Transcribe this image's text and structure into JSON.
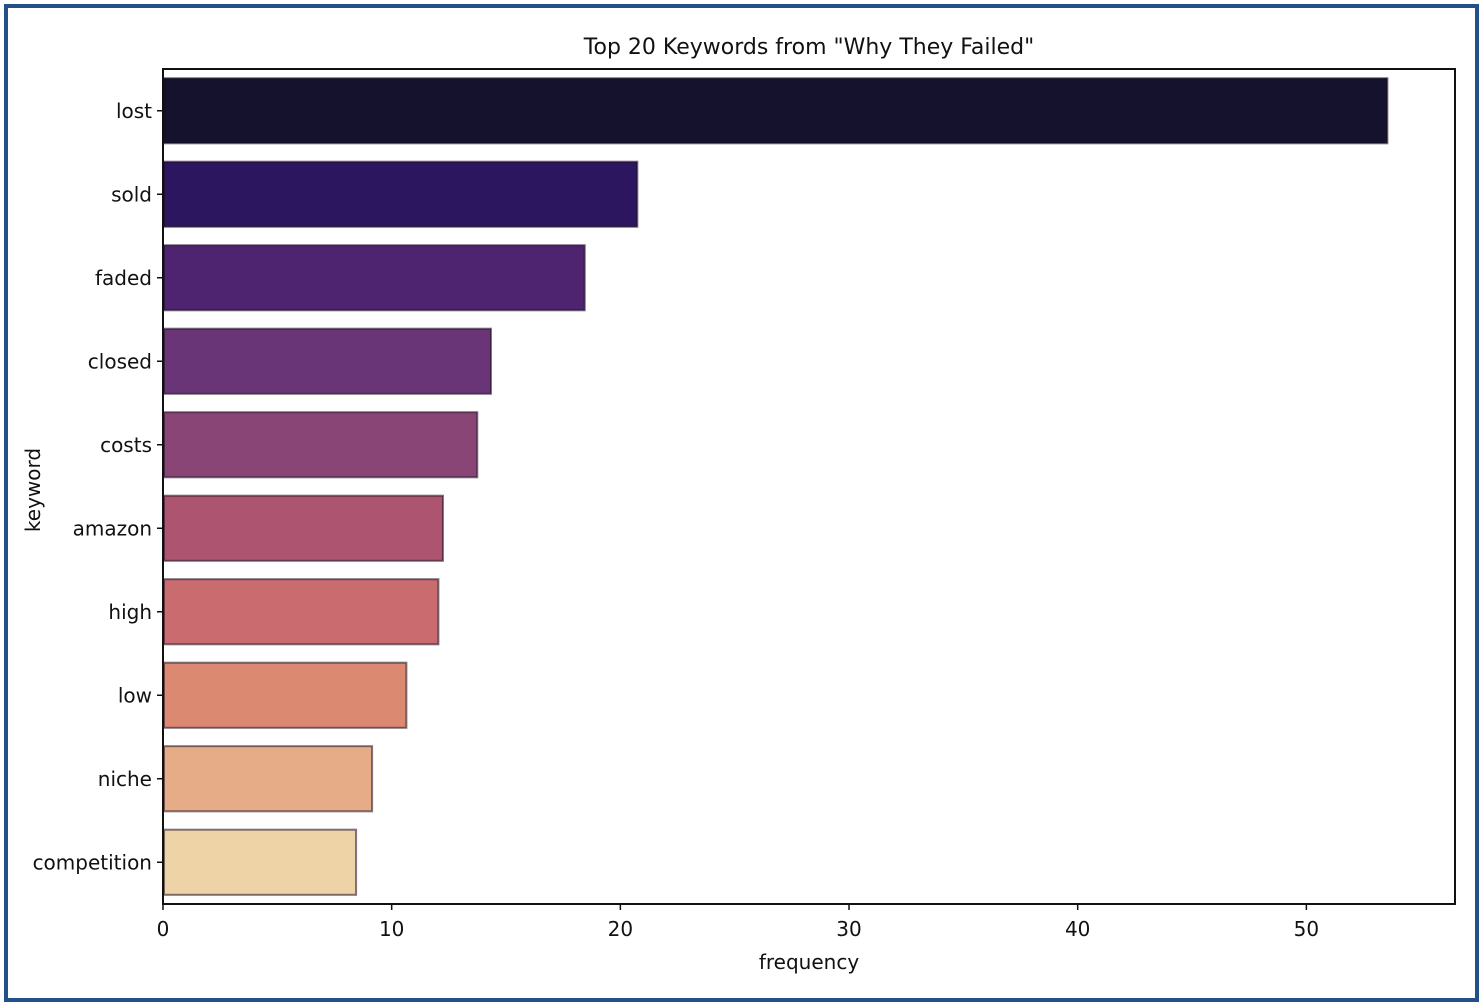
{
  "chart_data": {
    "type": "bar",
    "orientation": "horizontal",
    "title": "Top 20 Keywords from \"Why They Failed\"",
    "xlabel": "frequency",
    "ylabel": "keyword",
    "categories": [
      "lost",
      "sold",
      "faded",
      "closed",
      "costs",
      "amazon",
      "high",
      "low",
      "niche",
      "competition"
    ],
    "values": [
      53.5,
      20.7,
      18.4,
      14.3,
      13.7,
      12.2,
      12.0,
      10.6,
      9.1,
      8.4
    ],
    "colors": [
      "#14122c",
      "#2c1660",
      "#4e2370",
      "#6a3577",
      "#8a4577",
      "#ad5471",
      "#c96b6f",
      "#dc8972",
      "#e5ac87",
      "#eed3a6"
    ],
    "xlim": [
      0,
      56.5
    ],
    "xticks": [
      0,
      10,
      20,
      30,
      40,
      50
    ],
    "grid": false,
    "legend": "none"
  }
}
